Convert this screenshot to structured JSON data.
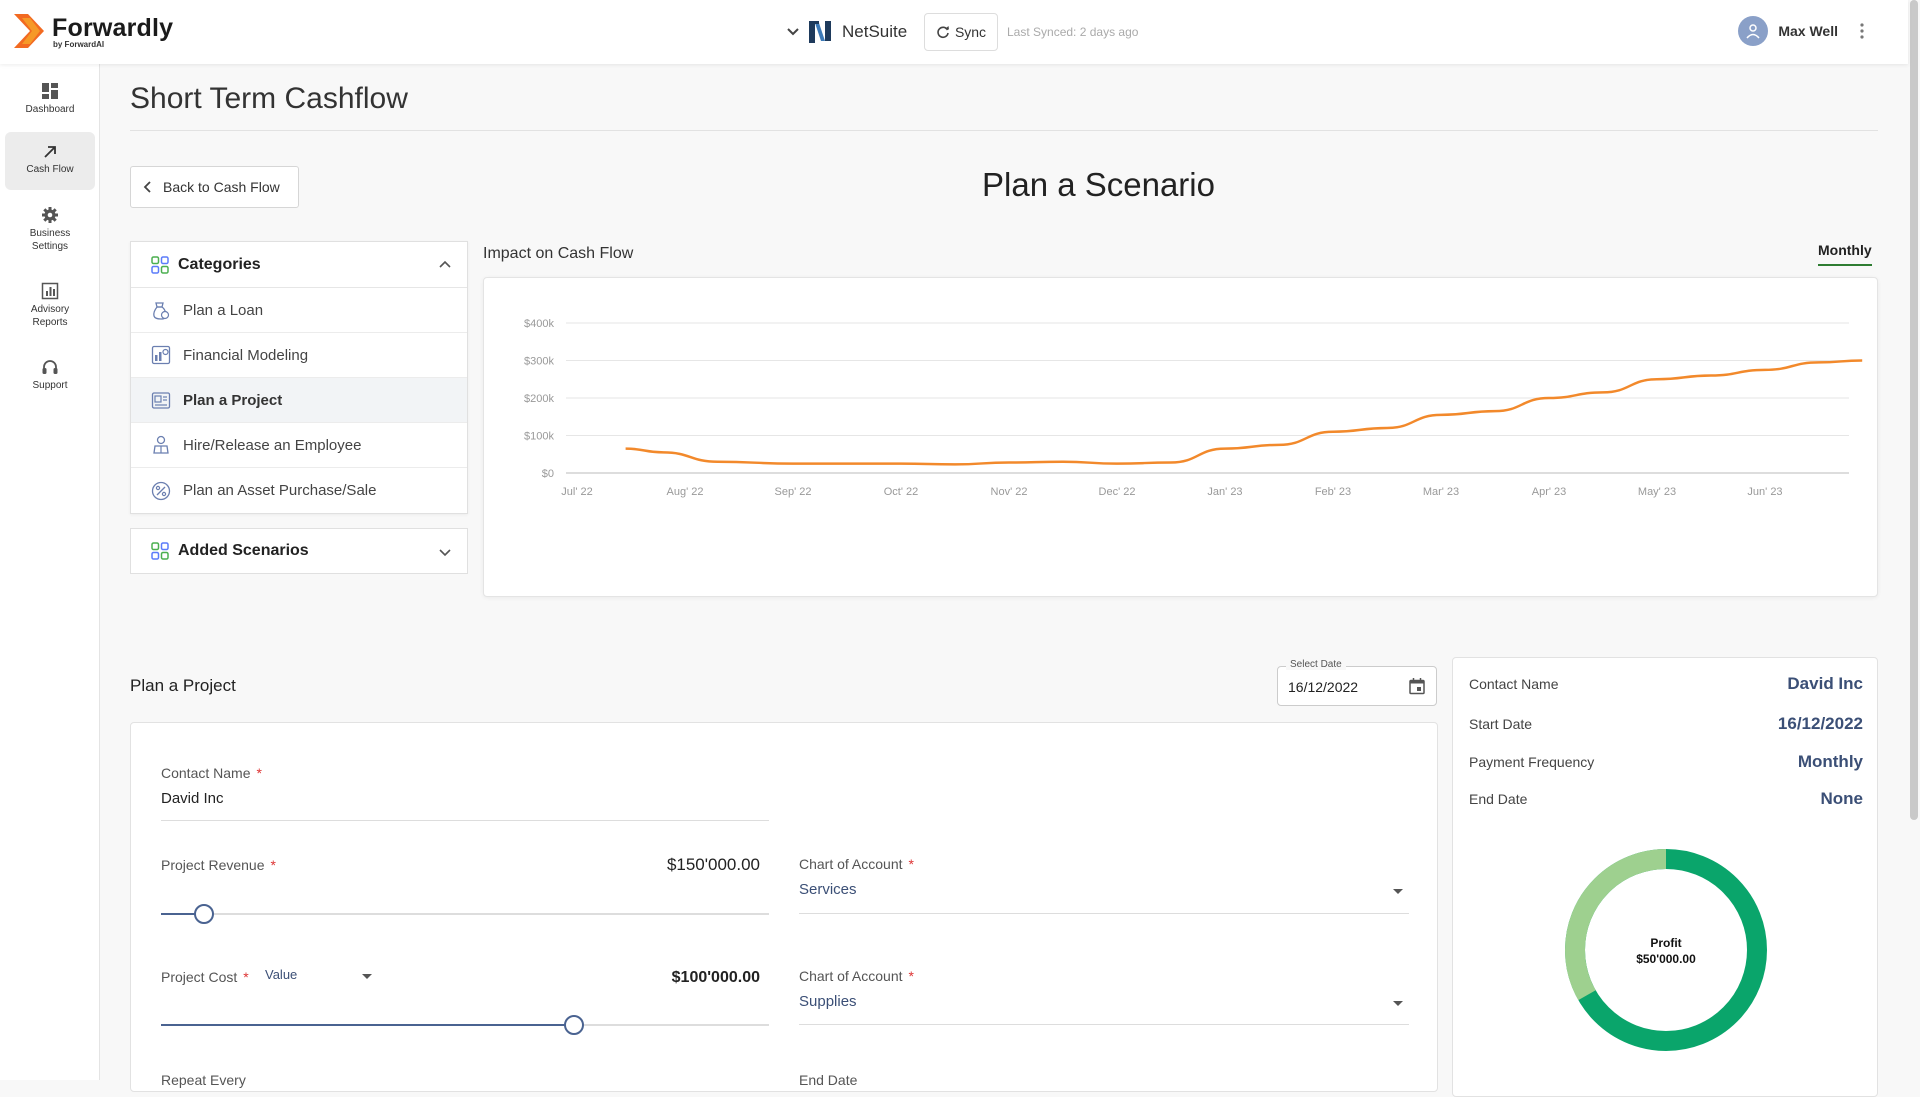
{
  "app": {
    "brand": "Forwardly",
    "brand_sub": "by ForwardAI",
    "erp": "NetSuite",
    "sync_label": "Sync",
    "last_synced": "Last Synced: 2 days ago",
    "user_name": "Max Well"
  },
  "sidebar": {
    "items": [
      {
        "label": "Dashboard",
        "icon": "dashboard-icon"
      },
      {
        "label": "Cash Flow",
        "icon": "arrow-up-right-icon"
      },
      {
        "label_line1": "Business",
        "label_line2": "Settings",
        "icon": "gear-icon"
      },
      {
        "label_line1": "Advisory",
        "label_line2": "Reports",
        "icon": "bar-chart-icon"
      },
      {
        "label": "Support",
        "icon": "headset-icon"
      }
    ]
  },
  "page": {
    "title": "Short Term Cashflow",
    "back_label": "Back to Cash Flow",
    "scenario_title": "Plan a Scenario"
  },
  "categories": {
    "title": "Categories",
    "items": [
      {
        "label": "Plan a Loan",
        "icon": "loan-icon"
      },
      {
        "label": "Financial Modeling",
        "icon": "modeling-icon"
      },
      {
        "label": "Plan a Project",
        "icon": "project-icon"
      },
      {
        "label": "Hire/Release an Employee",
        "icon": "employee-icon"
      },
      {
        "label": "Plan an Asset Purchase/Sale",
        "icon": "asset-icon"
      }
    ],
    "added_title": "Added Scenarios"
  },
  "chart_data": {
    "type": "line",
    "title": "Impact on Cash Flow",
    "period_tab": "Monthly",
    "x_ticks": [
      "Jul' 22",
      "Aug' 22",
      "Sep' 22",
      "Oct' 22",
      "Nov' 22",
      "Dec' 22",
      "Jan' 23",
      "Feb' 23",
      "Mar' 23",
      "Apr' 23",
      "May' 23",
      "Jun' 23"
    ],
    "y_ticks": [
      "$0",
      "$100k",
      "$200k",
      "$300k",
      "$400k"
    ],
    "ylim": [
      0,
      400000
    ],
    "series": [
      {
        "name": "Cash Flow",
        "color": "#f2892b",
        "x": [
          0.45,
          0.8,
          1.3,
          2.0,
          3.0,
          3.5,
          4.0,
          4.5,
          5.0,
          5.5,
          6.0,
          6.5,
          7.0,
          7.5,
          8.0,
          8.5,
          9.0,
          9.5,
          10.0,
          10.5,
          11.0,
          11.5,
          11.9
        ],
        "values": [
          65000,
          55000,
          30000,
          25000,
          25000,
          23000,
          28000,
          30000,
          25000,
          28000,
          65000,
          75000,
          110000,
          120000,
          155000,
          165000,
          200000,
          215000,
          250000,
          260000,
          275000,
          295000,
          300000
        ]
      }
    ]
  },
  "form": {
    "section_title": "Plan a Project",
    "select_date_label": "Select Date",
    "select_date_value": "16/12/2022",
    "contact_name_label": "Contact Name",
    "contact_name_value": "David Inc",
    "project_revenue_label": "Project Revenue",
    "project_revenue_value": "$150'000.00",
    "project_revenue_fraction": 0.07,
    "chart_of_account_label": "Chart of Account",
    "revenue_account_value": "Services",
    "project_cost_label": "Project Cost",
    "project_cost_type": "Value",
    "project_cost_value": "$100'000.00",
    "project_cost_fraction": 0.68,
    "cost_account_value": "Supplies",
    "repeat_every_label": "Repeat Every",
    "end_date_label": "End Date",
    "required_mark": "*"
  },
  "summary": {
    "contact_name_label": "Contact Name",
    "contact_name_value": "David Inc",
    "start_date_label": "Start Date",
    "start_date_value": "16/12/2022",
    "payment_frequency_label": "Payment Frequency",
    "payment_frequency_value": "Monthly",
    "end_date_label": "End Date",
    "end_date_value": "None",
    "profit_label": "Profit",
    "profit_value": "$50'000.00",
    "profit_share": 0.333,
    "profit_color": "#9ed08f",
    "cost_color": "#0aa56b"
  }
}
